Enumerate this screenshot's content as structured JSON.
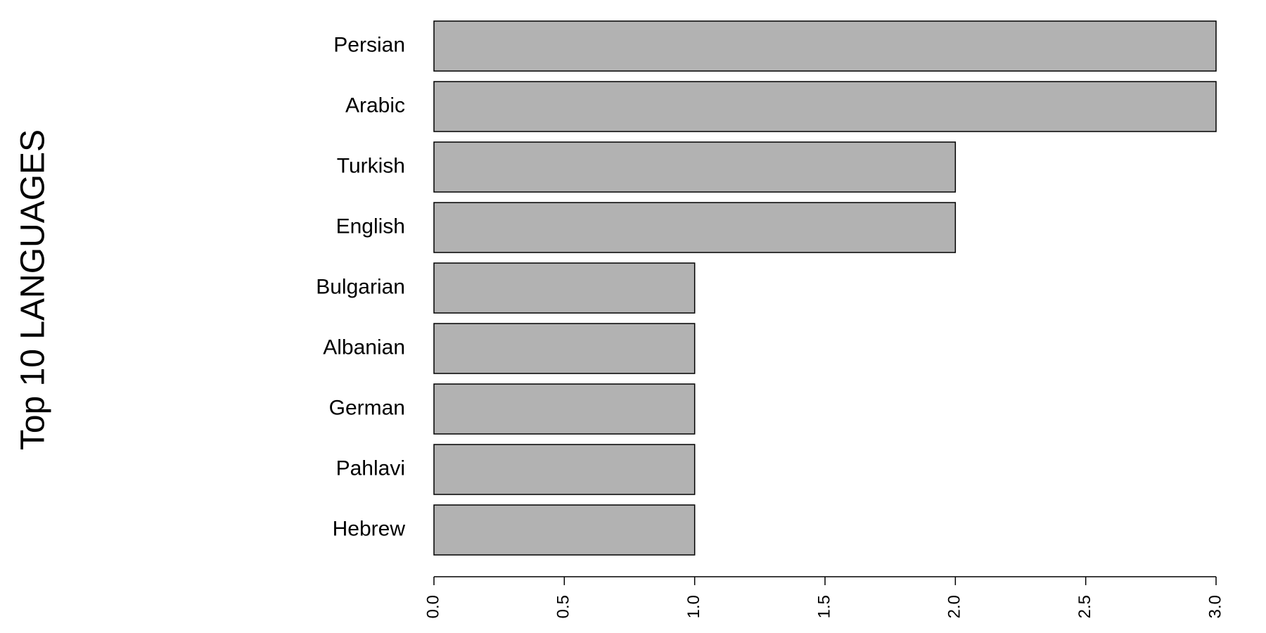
{
  "chart_data": {
    "type": "bar",
    "orientation": "horizontal",
    "title": "",
    "xlabel": "",
    "ylabel": "Top 10 LANGUAGES",
    "categories": [
      "Persian",
      "Arabic",
      "Turkish",
      "English",
      "Bulgarian",
      "Albanian",
      "German",
      "Pahlavi",
      "Hebrew"
    ],
    "values": [
      3,
      3,
      2,
      2,
      1,
      1,
      1,
      1,
      1
    ],
    "xlim": [
      0,
      3
    ],
    "xticks": [
      "0.0",
      "0.5",
      "1.0",
      "1.5",
      "2.0",
      "2.5",
      "3.0"
    ],
    "grid": false,
    "legend": "none",
    "bar_color": "#b2b2b2",
    "bar_edge_color": "#000000"
  }
}
